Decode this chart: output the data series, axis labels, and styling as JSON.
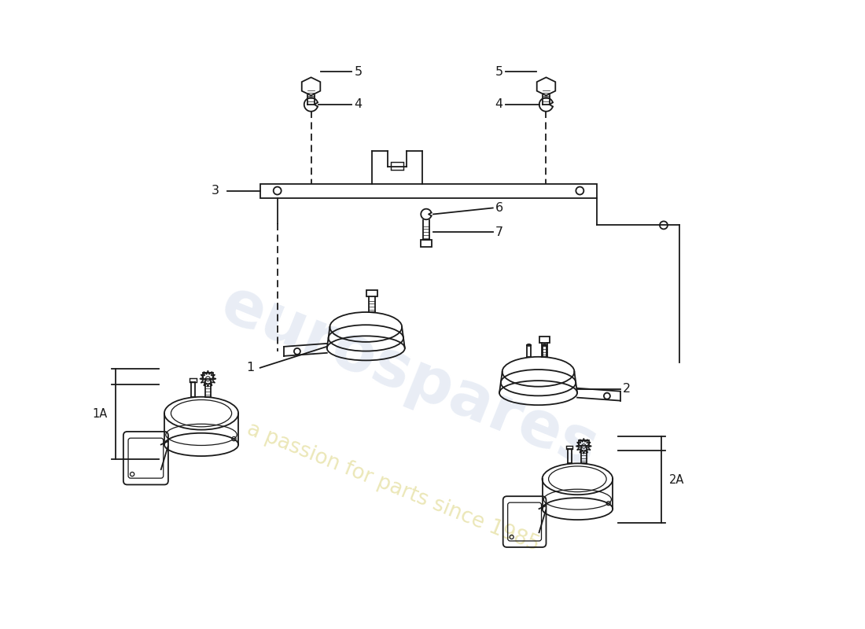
{
  "bg_color": "#ffffff",
  "line_color": "#1a1a1a",
  "watermark1": "eurospares",
  "watermark2": "a passion for parts since 1985",
  "figw": 11.0,
  "figh": 8.0,
  "xlim": [
    0,
    11
  ],
  "ylim": [
    0,
    8
  ]
}
